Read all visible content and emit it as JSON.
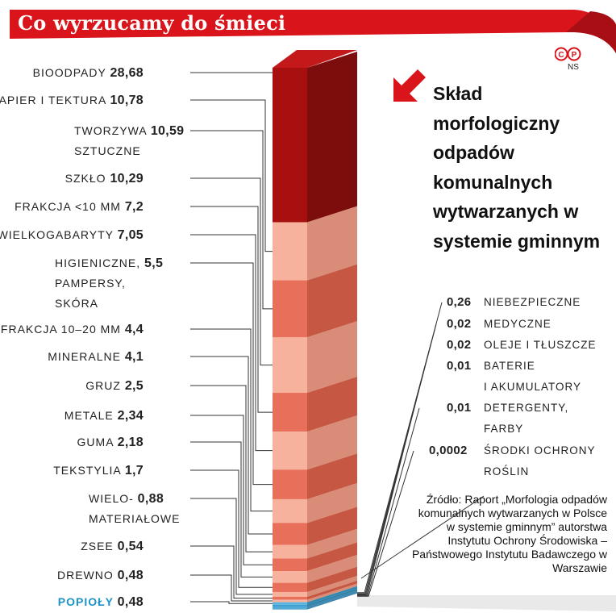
{
  "title": "Co wyrzucamy do śmieci",
  "logo_text": "©P",
  "initials": "NS",
  "subtitle": "Skład morfologiczny odpadów komunalnych wytwarzanych w systemie gminnym",
  "source": "Źródło: Raport „Morfologia odpadów komunalnych wytwarzanych w Polsce w systemie gminnym” autorstwa Instytutu Ochrony Środowiska – Państwowego Instytutu Badawczego w Warszawie",
  "colors": {
    "header_red": "#d9141b",
    "dark_red": "#9b0f0f",
    "salmon": "#f2a28a",
    "coral": "#e8705a",
    "accent_blue": "#1d93c8"
  },
  "chart_data": {
    "type": "stacked-bar",
    "unit": "%",
    "left_items": [
      {
        "label": "BIOODPADY",
        "value": "28,68",
        "label2": ""
      },
      {
        "label": "PAPIER I TEKTURA",
        "value": "10,78",
        "label2": ""
      },
      {
        "label": "TWORZYWA",
        "value": "10,59",
        "label2": "SZTUCZNE"
      },
      {
        "label": "SZKŁO",
        "value": "10,29",
        "label2": ""
      },
      {
        "label": "FRAKCJA <10 MM",
        "value": "7,2",
        "label2": ""
      },
      {
        "label": "WIELKOGABARYTY",
        "value": "7,05",
        "label2": ""
      },
      {
        "label": "HIGIENICZNE,",
        "value": "5,5",
        "label2": "PAMPERSY,",
        "label3": "SKÓRA"
      },
      {
        "label": "FRAKCJA 10–20 MM",
        "value": "4,4",
        "label2": ""
      },
      {
        "label": "MINERALNE",
        "value": "4,1",
        "label2": ""
      },
      {
        "label": "GRUZ",
        "value": "2,5",
        "label2": ""
      },
      {
        "label": "METALE",
        "value": "2,34",
        "label2": ""
      },
      {
        "label": "GUMA",
        "value": "2,18",
        "label2": ""
      },
      {
        "label": "TEKSTYLIA",
        "value": "1,7",
        "label2": ""
      },
      {
        "label": "WIELO-",
        "value": "0,88",
        "label2": "MATERIAŁOWE"
      },
      {
        "label": "ZSEE",
        "value": "0,54",
        "label2": ""
      },
      {
        "label": "DREWNO",
        "value": "0,48",
        "label2": ""
      },
      {
        "label": "POPIOŁY",
        "value": "0,48",
        "label2": "",
        "accent": true
      }
    ],
    "right_items": [
      {
        "label": "NIEBEZPIECZNE",
        "value": "0,26",
        "label2": ""
      },
      {
        "label": "MEDYCZNE",
        "value": "0,02",
        "label2": ""
      },
      {
        "label": "OLEJE I TŁUSZCZE",
        "value": "0,02",
        "label2": ""
      },
      {
        "label": "BATERIE",
        "value": "0,01",
        "label2": "I AKUMULATORY"
      },
      {
        "label": "DETERGENTY,",
        "value": "0,01",
        "label2": "FARBY"
      },
      {
        "label": "ŚRODKI OCHRONY",
        "value": "0,0002",
        "label2": "ROŚLIN"
      }
    ]
  }
}
